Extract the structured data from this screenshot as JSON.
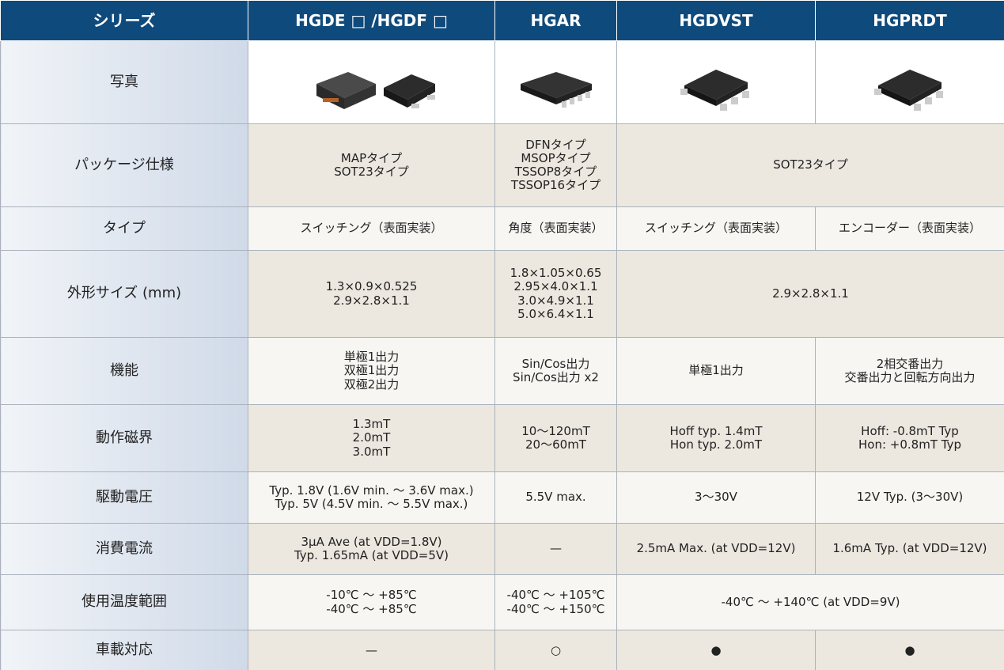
{
  "table": {
    "header": [
      "シリーズ",
      "HGDE □ /HGDF □",
      "HGAR",
      "HGDVST",
      "HGPRDT"
    ],
    "rows": [
      {
        "label": "写真"
      },
      {
        "label": "パッケージ仕様",
        "cells": [
          "MAPタイプ\nSOT23タイプ",
          "DFNタイプ\nMSOPタイプ\nTSSOP8タイプ\nTSSOP16タイプ",
          "SOT23タイプ"
        ]
      },
      {
        "label": "タイプ",
        "cells": [
          "スイッチング（表面実装）",
          "角度（表面実装）",
          "スイッチング（表面実装）",
          "エンコーダー（表面実装）"
        ]
      },
      {
        "label": "外形サイズ (mm)",
        "cells": [
          "1.3×0.9×0.525\n2.9×2.8×1.1",
          "1.8×1.05×0.65\n2.95×4.0×1.1\n3.0×4.9×1.1\n5.0×6.4×1.1",
          "2.9×2.8×1.1"
        ]
      },
      {
        "label": "機能",
        "cells": [
          "単極1出力\n双極1出力\n双極2出力",
          "Sin/Cos出力\nSin/Cos出力 x2",
          "単極1出力",
          "2相交番出力\n交番出力と回転方向出力"
        ]
      },
      {
        "label": "動作磁界",
        "cells": [
          "1.3mT\n2.0mT\n3.0mT",
          "10〜120mT\n20〜60mT",
          "Hoff typ. 1.4mT\nHon typ. 2.0mT",
          "Hoff: -0.8mT Typ\nHon: +0.8mT Typ"
        ]
      },
      {
        "label": "駆動電圧",
        "cells": [
          "Typ. 1.8V (1.6V min. 〜 3.6V max.)\nTyp. 5V (4.5V min. 〜 5.5V max.)",
          "5.5V max.",
          "3〜30V",
          "12V Typ. (3〜30V)"
        ]
      },
      {
        "label": "消費電流",
        "cells": [
          "3μA Ave (at VDD=1.8V)\nTyp. 1.65mA (at VDD=5V)",
          "—",
          "2.5mA Max. (at VDD=12V)",
          "1.6mA Typ. (at VDD=12V)"
        ]
      },
      {
        "label": "使用温度範囲",
        "cells": [
          "-10℃ 〜 +85℃\n-40℃ 〜 +85℃",
          "-40℃ 〜 +105℃\n-40℃ 〜 +150℃",
          "-40℃ 〜 +140℃ (at VDD=9V)"
        ]
      },
      {
        "label": "車載対応",
        "cells": [
          "—",
          "○",
          "●",
          "●"
        ]
      }
    ]
  }
}
